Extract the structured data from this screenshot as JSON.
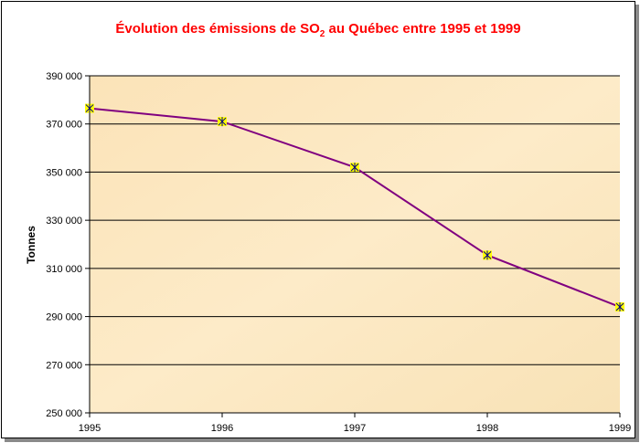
{
  "chart_data": {
    "type": "line",
    "title": {
      "prefix": "Évolution des émissions de SO",
      "subscript": "2",
      "suffix": " au Québec entre 1995 et 1999"
    },
    "xlabel": "",
    "ylabel": "Tonnes",
    "categories": [
      "1995",
      "1996",
      "1997",
      "1998",
      "1999"
    ],
    "series": [
      {
        "values": [
          376500,
          371000,
          352000,
          315500,
          294000
        ]
      }
    ],
    "ylim": [
      250000,
      390000
    ],
    "yticks": [
      250000,
      270000,
      290000,
      310000,
      330000,
      350000,
      370000,
      390000
    ],
    "ytick_labels": [
      "250 000",
      "270 000",
      "290 000",
      "310 000",
      "330 000",
      "350 000",
      "370 000",
      "390 000"
    ],
    "grid": true,
    "legend": "none",
    "colors": {
      "title": "#ff0000",
      "line": "#800080",
      "marker_fill": "#ffff00",
      "marker_cross": "#000080",
      "plot_background": "#fbe7bf",
      "gridline": "#000000"
    }
  }
}
